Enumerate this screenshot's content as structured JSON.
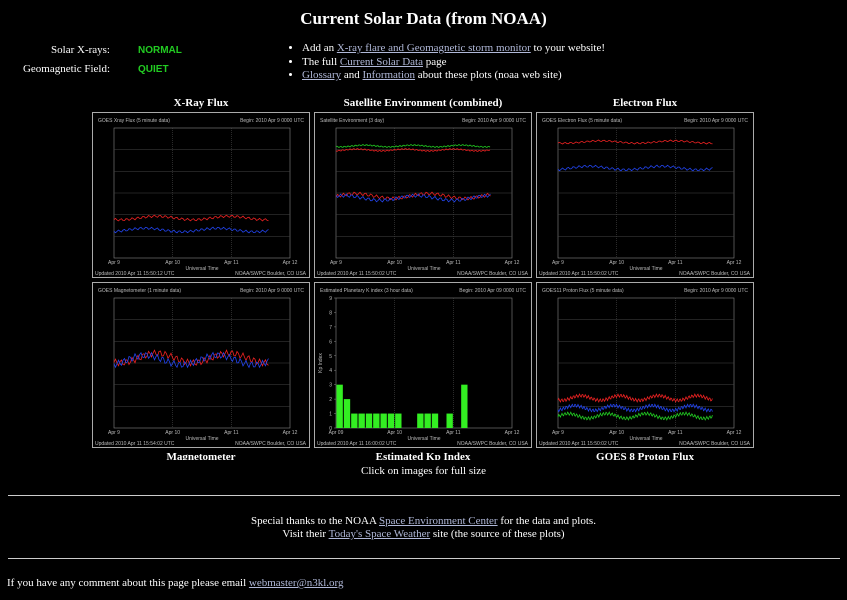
{
  "header": {
    "title": "Current Solar Data (from NOAA)"
  },
  "status": [
    {
      "label": "Solar X-rays:",
      "value": "NORMAL"
    },
    {
      "label": "Geomagnetic Field:",
      "value": "QUIET"
    }
  ],
  "links": [
    [
      {
        "text": "Add an ",
        "link": false
      },
      {
        "text": "X-ray flare and Geomagnetic storm monitor",
        "link": true
      },
      {
        "text": " to your website!",
        "link": false
      }
    ],
    [
      {
        "text": "The full ",
        "link": false
      },
      {
        "text": "Current Solar Data",
        "link": true
      },
      {
        "text": " page",
        "link": false
      }
    ],
    [
      {
        "text": "Glossary",
        "link": true
      },
      {
        "text": " and ",
        "link": false
      },
      {
        "text": "Information",
        "link": true
      },
      {
        "text": " about these plots (noaa web site)",
        "link": false
      }
    ]
  ],
  "plots": [
    {
      "caption": "X-Ray Flux",
      "title": "GOES Xray Flux (5 minute data)",
      "begin": "Begin: 2010 Apr 9 0000 UTC",
      "updated": "Updated 2010 Apr 11 15:50:12 UTC",
      "credit": "NOAA/SWPC Boulder, CO USA",
      "x_labels": [
        "Apr 9",
        "Apr 10",
        "Apr 11",
        "Apr 12"
      ],
      "x_title": "Universal Time"
    },
    {
      "caption": "Satellite Environment (combined)",
      "title": "Satellite Environment (3 day)",
      "begin": "Begin: 2010 Apr 9 0000 UTC",
      "updated": "Updated 2010 Apr 11 15:50:02 UTC",
      "credit": "NOAA/SWPC Boulder, CO USA",
      "x_labels": [
        "Apr 9",
        "Apr 10",
        "Apr 11",
        "Apr 12"
      ],
      "x_title": "Universal Time"
    },
    {
      "caption": "Electron Flux",
      "title": "GOES Electron Flux (5 minute data)",
      "begin": "Begin: 2010 Apr 9 0000 UTC",
      "updated": "Updated 2010 Apr 11 15:50:02 UTC",
      "credit": "NOAA/SWPC Boulder, CO USA",
      "x_labels": [
        "Apr 9",
        "Apr 10",
        "Apr 11",
        "Apr 12"
      ],
      "x_title": "Universal Time"
    },
    {
      "caption": "Magnetometer",
      "title": "GOES Magnetometer (1 minute data)",
      "begin": "Begin: 2010 Apr 9 0000 UTC",
      "updated": "Updated 2010 Apr 11 15:54:02 UTC",
      "credit": "NOAA/SWPC Boulder, CO USA",
      "x_labels": [
        "Apr 9",
        "Apr 10",
        "Apr 11",
        "Apr 12"
      ],
      "x_title": "Universal Time"
    },
    {
      "caption": "Estimated Kp Index",
      "title": "Estimated Planetary K index (3 hour data)",
      "begin": "Begin: 2010 Apr 09 0000 UTC",
      "updated": "Updated 2010 Apr 11 16:00:02 UTC",
      "credit": "NOAA/SWPC Boulder, CO USA",
      "x_labels": [
        "Apr 09",
        "Apr 10",
        "Apr 11",
        "Apr 12"
      ],
      "x_title": "Universal Time",
      "y_title": "Kp Index",
      "yticks": [
        0,
        1,
        2,
        3,
        4,
        5,
        6,
        7,
        8,
        9
      ],
      "ylim": [
        0,
        9
      ],
      "values": [
        3,
        2,
        1,
        1,
        1,
        1,
        1,
        1,
        1,
        0,
        0,
        1,
        1,
        1,
        0,
        1,
        0,
        3
      ],
      "slots": 24
    },
    {
      "caption": "GOES 8 Proton Flux",
      "title": "GOES11 Proton Flux (5 minute data)",
      "begin": "Begin: 2010 Apr 9 0000 UTC",
      "updated": "Updated 2010 Apr 11 15:50:02 UTC",
      "credit": "NOAA/SWPC Boulder, CO USA",
      "x_labels": [
        "Apr 9",
        "Apr 10",
        "Apr 11",
        "Apr 12"
      ],
      "x_title": "Universal Time"
    }
  ],
  "footer": {
    "click": "Click on images for full size",
    "thanks": [
      {
        "text": "Special thanks to the NOAA ",
        "link": false
      },
      {
        "text": "Space Environment Center",
        "link": true
      },
      {
        "text": " for the data and plots.",
        "link": false
      }
    ],
    "visit": [
      {
        "text": "Visit their ",
        "link": false
      },
      {
        "text": "Today's Space Weather",
        "link": true
      },
      {
        "text": " site (the source of these plots)",
        "link": false
      }
    ],
    "email": [
      {
        "text": "If you have any comment about this page please email ",
        "link": false
      },
      {
        "text": "webmaster@n3kl.org",
        "link": true
      }
    ]
  }
}
